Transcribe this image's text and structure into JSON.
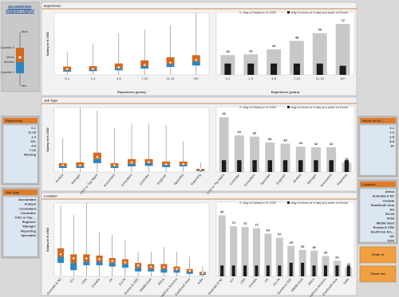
{
  "legend": {
    "title": "Box&Whisker Diagram Legend",
    "labels": [
      "Max",
      "Quartile 3",
      "Mean",
      "Median",
      "Quartile 1",
      "Min"
    ]
  },
  "filters": [
    {
      "title": "Experience",
      "items": [
        "0-1",
        "11-15",
        "1-3",
        "15+",
        "4-6",
        "7-10",
        "Missing"
      ]
    },
    {
      "title": "Job Type",
      "items": [
        "Accountant",
        "Analyst",
        "Consultant",
        "Controller",
        "CXO or Top ...",
        "Engineer",
        "Manager",
        "Reporting",
        "Specialist"
      ]
    },
    {
      "title": "Hours on Ex...",
      "items": [
        "0-1",
        "1-2",
        "2-5",
        "5-8",
        "8+"
      ]
    },
    {
      "title": "Location",
      "items": [
        "Africa",
        "Australia & NZ",
        "Canada",
        "EastSouth Asia",
        "EU",
        "EU-Ni",
        "India",
        "Middle East",
        "Russia & CEE",
        "SouthCen Am...",
        "UK",
        "USA"
      ]
    }
  ],
  "buttons": [
    "Zoom in",
    "Zoom out"
  ],
  "chart_data": [
    {
      "type": "box",
      "title": "Experience",
      "ylabel": "Salary in K USD",
      "xlabel": "Experience (years)",
      "categories": [
        "0-1",
        "1-3",
        "4-6",
        "7-10",
        "11-15",
        "15+"
      ],
      "ylim": [
        0,
        300
      ],
      "upper_color": "#d2691e",
      "lower_color": "#2e86c1",
      "min": [
        0,
        0,
        0,
        0,
        0,
        0
      ],
      "q1": [
        15,
        18,
        22,
        30,
        38,
        45
      ],
      "median": [
        22,
        25,
        32,
        42,
        52,
        65
      ],
      "mean": [
        28,
        29,
        36,
        48,
        59,
        72
      ],
      "q3": [
        40,
        42,
        55,
        70,
        85,
        95
      ],
      "max": [
        110,
        150,
        200,
        220,
        240,
        300
      ]
    },
    {
      "type": "bar",
      "xlabel": "Experience (years)",
      "categories": [
        "0-1",
        "1-3",
        "4-6",
        "7-10",
        "11-15",
        "15+"
      ],
      "ylim": [
        0,
        80
      ],
      "y2lim": [
        0,
        25
      ],
      "series": [
        {
          "name": "Avg of Salary in K USD",
          "color": "#c8c8c8",
          "values": [
            28,
            29,
            36,
            48,
            59,
            72
          ]
        },
        {
          "name": "Avg of hours of a day you work on Excel",
          "color": "#1a1a1a",
          "axis": "y2",
          "values": [
            5,
            5,
            5,
            5,
            5,
            4
          ]
        }
      ]
    },
    {
      "type": "box",
      "title": "Job Type",
      "ylabel": "Salary in K USD",
      "categories": [
        "Analyst",
        "Manager",
        "CXO or Top Mgmt",
        "Accountant",
        "Consultant",
        "Controller",
        "Engineer",
        "Specialist",
        "Reporting"
      ],
      "ylim": [
        0,
        400
      ],
      "upper_color": "#d2691e",
      "lower_color": "#2e86c1",
      "min": [
        0,
        0,
        0,
        0,
        0,
        0,
        0,
        0,
        0
      ],
      "q1": [
        25,
        25,
        55,
        25,
        35,
        38,
        30,
        35,
        5
      ],
      "median": [
        35,
        35,
        80,
        35,
        50,
        55,
        45,
        45,
        10
      ],
      "mean": [
        43,
        42,
        93,
        42,
        60,
        62,
        48,
        50,
        16
      ],
      "q3": [
        55,
        60,
        120,
        55,
        80,
        80,
        65,
        65,
        20
      ],
      "max": [
        210,
        400,
        380,
        270,
        300,
        300,
        290,
        190,
        60
      ]
    },
    {
      "type": "bar",
      "categories": [
        "CXO or Top Mgmt",
        "Controller",
        "Consultant",
        "Specialist",
        "Engineer",
        "Analyst",
        "Manager",
        "Accountant",
        "Reporting"
      ],
      "ylim": [
        0,
        100
      ],
      "y2lim": [
        0,
        25
      ],
      "series": [
        {
          "name": "Avg of Salary in K USD",
          "color": "#c8c8c8",
          "values": [
            93,
            62,
            60,
            50,
            48,
            43,
            42,
            42,
            16
          ]
        },
        {
          "name": "Avg of hours of a day you work on Excel",
          "color": "#1a1a1a",
          "axis": "y2",
          "values": [
            5,
            5,
            5,
            5,
            5,
            5,
            5,
            5,
            5
          ]
        }
      ]
    },
    {
      "type": "box",
      "title": "Location",
      "ylabel": "Salary in K USD",
      "categories": [
        "Australia & NZ",
        "EU",
        "USA",
        "Canada",
        "UK",
        "EU-Ni",
        "Russia & CEE",
        "Middle East",
        "Africa",
        "SouthCen America",
        "EastSouth Asia",
        "India"
      ],
      "ylim": [
        0,
        300
      ],
      "upper_color": "#d2691e",
      "lower_color": "#2e86c1",
      "min": [
        0,
        0,
        0,
        0,
        0,
        0,
        0,
        0,
        0,
        0,
        0,
        0
      ],
      "q1": [
        55,
        25,
        45,
        45,
        40,
        35,
        20,
        20,
        15,
        15,
        10,
        5
      ],
      "median": [
        80,
        55,
        60,
        60,
        55,
        50,
        35,
        30,
        30,
        25,
        18,
        10
      ],
      "mean": [
        90,
        74,
        73,
        71,
        63,
        57,
        45,
        39,
        38,
        30,
        23,
        13
      ],
      "q3": [
        115,
        90,
        90,
        85,
        75,
        70,
        55,
        50,
        50,
        40,
        30,
        18
      ],
      "max": [
        290,
        250,
        300,
        180,
        170,
        150,
        100,
        100,
        120,
        100,
        80,
        40
      ]
    },
    {
      "type": "bar",
      "categories": [
        "Australia & NZ",
        "EU",
        "USA",
        "Canada",
        "UK",
        "EU-Ni",
        "Russia & CEE",
        "Middle East",
        "Africa",
        "SouthCen America",
        "EastSouth Asia",
        "India"
      ],
      "ylim": [
        0,
        100
      ],
      "y2lim": [
        0,
        25
      ],
      "series": [
        {
          "name": "Avg of Salary in K USD",
          "color": "#c8c8c8",
          "values": [
            90,
            74,
            73,
            71,
            63,
            57,
            45,
            39,
            38,
            30,
            23,
            13
          ]
        },
        {
          "name": "Avg of hours of a day you work on Excel",
          "color": "#1a1a1a",
          "axis": "y2",
          "values": [
            4,
            4,
            4,
            4,
            4,
            4,
            5,
            5,
            4,
            4,
            4,
            4
          ]
        }
      ]
    }
  ]
}
